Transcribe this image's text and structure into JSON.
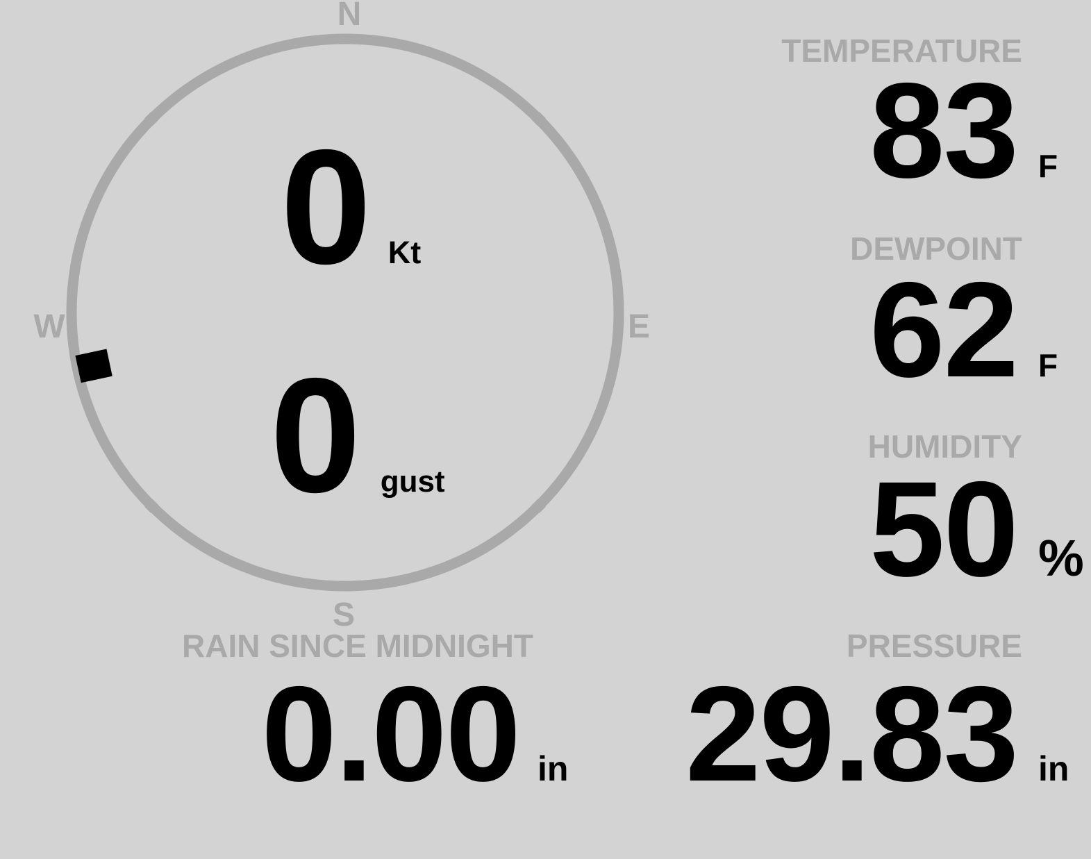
{
  "colors": {
    "background": "#d3d3d3",
    "muted": "#a9a9a9",
    "value": "#000000"
  },
  "compass": {
    "north": "N",
    "east": "E",
    "south": "S",
    "west": "W"
  },
  "wind": {
    "speed": "0",
    "speed_unit": "Kt",
    "gust": "0",
    "gust_unit": "gust",
    "direction_deg": 258
  },
  "metrics": [
    {
      "id": "temperature",
      "label": "TEMPERATURE",
      "value": "83",
      "unit": "F"
    },
    {
      "id": "dewpoint",
      "label": "DEWPOINT",
      "value": "62",
      "unit": "F"
    },
    {
      "id": "humidity",
      "label": "HUMIDITY",
      "value": "50",
      "unit": "%"
    },
    {
      "id": "rain_since_midnight",
      "label": "RAIN SINCE MIDNIGHT",
      "value": "0.00",
      "unit": "in"
    },
    {
      "id": "pressure",
      "label": "PRESSURE",
      "value": "29.83",
      "unit": "in"
    }
  ]
}
